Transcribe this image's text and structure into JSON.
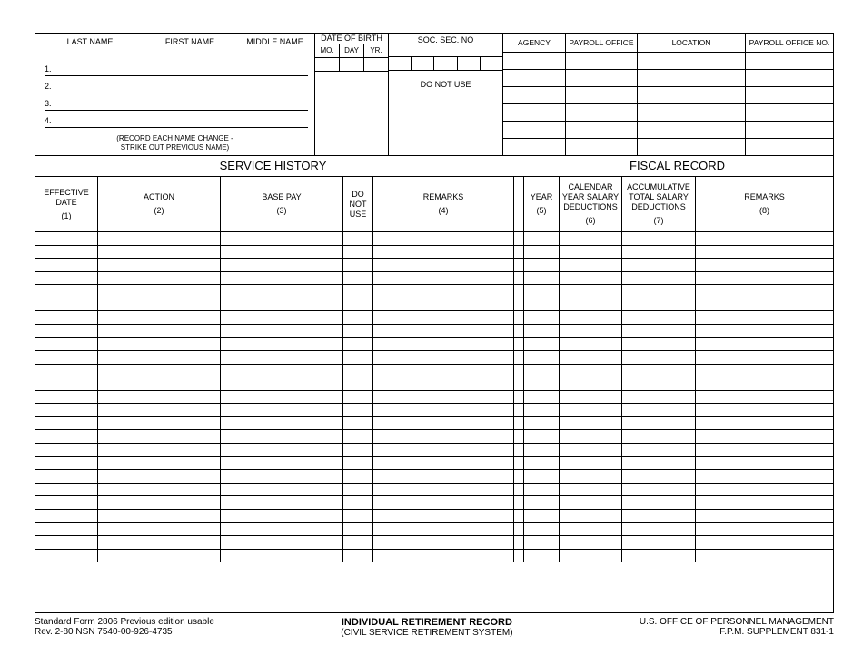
{
  "header": {
    "last_name": "LAST NAME",
    "first_name": "FIRST NAME",
    "middle_name": "MIDDLE NAME",
    "dob": "DATE OF BIRTH",
    "dob_mo": "MO.",
    "dob_day": "DAY",
    "dob_yr": "YR.",
    "ssn": "SOC. SEC. NO",
    "do_not_use": "DO NOT USE",
    "agency": "AGENCY",
    "payroll_office": "PAYROLL OFFICE",
    "location": "LOCATION",
    "payroll_office_no": "PAYROLL OFFICE NO.",
    "name_note_l1": "(RECORD EACH NAME CHANGE -",
    "name_note_l2": "STRIKE OUT PREVIOUS NAME)",
    "line1": "1.",
    "line2": "2.",
    "line3": "3.",
    "line4": "4.",
    "right_rows": 6,
    "data_rows": 25
  },
  "sections": {
    "service_history": "SERVICE HISTORY",
    "fiscal_record": "FISCAL RECORD"
  },
  "columns": {
    "effective_date": "EFFECTIVE DATE",
    "action": "ACTION",
    "base_pay": "BASE PAY",
    "do_not_use": "DO NOT USE",
    "remarks": "REMARKS",
    "year": "YEAR",
    "calendar": "CALENDAR YEAR SALARY DEDUCTIONS",
    "accumulative": "ACCUMULATIVE TOTAL SALARY DEDUCTIONS",
    "n1": "(1)",
    "n2": "(2)",
    "n3": "(3)",
    "n4": "(4)",
    "n5": "(5)",
    "n6": "(6)",
    "n7": "(7)",
    "n8": "(8)"
  },
  "footer": {
    "left_l1": "Standard Form 2806 Previous edition usable",
    "left_l2": "Rev. 2-80 NSN 7540-00-926-4735",
    "center_l1": "INDIVIDUAL RETIREMENT RECORD",
    "center_l2": "(CIVIL SERVICE RETIREMENT SYSTEM)",
    "right_l1": "U.S. OFFICE OF PERSONNEL MANAGEMENT",
    "right_l2": "F.P.M. SUPPLEMENT 831-1"
  }
}
